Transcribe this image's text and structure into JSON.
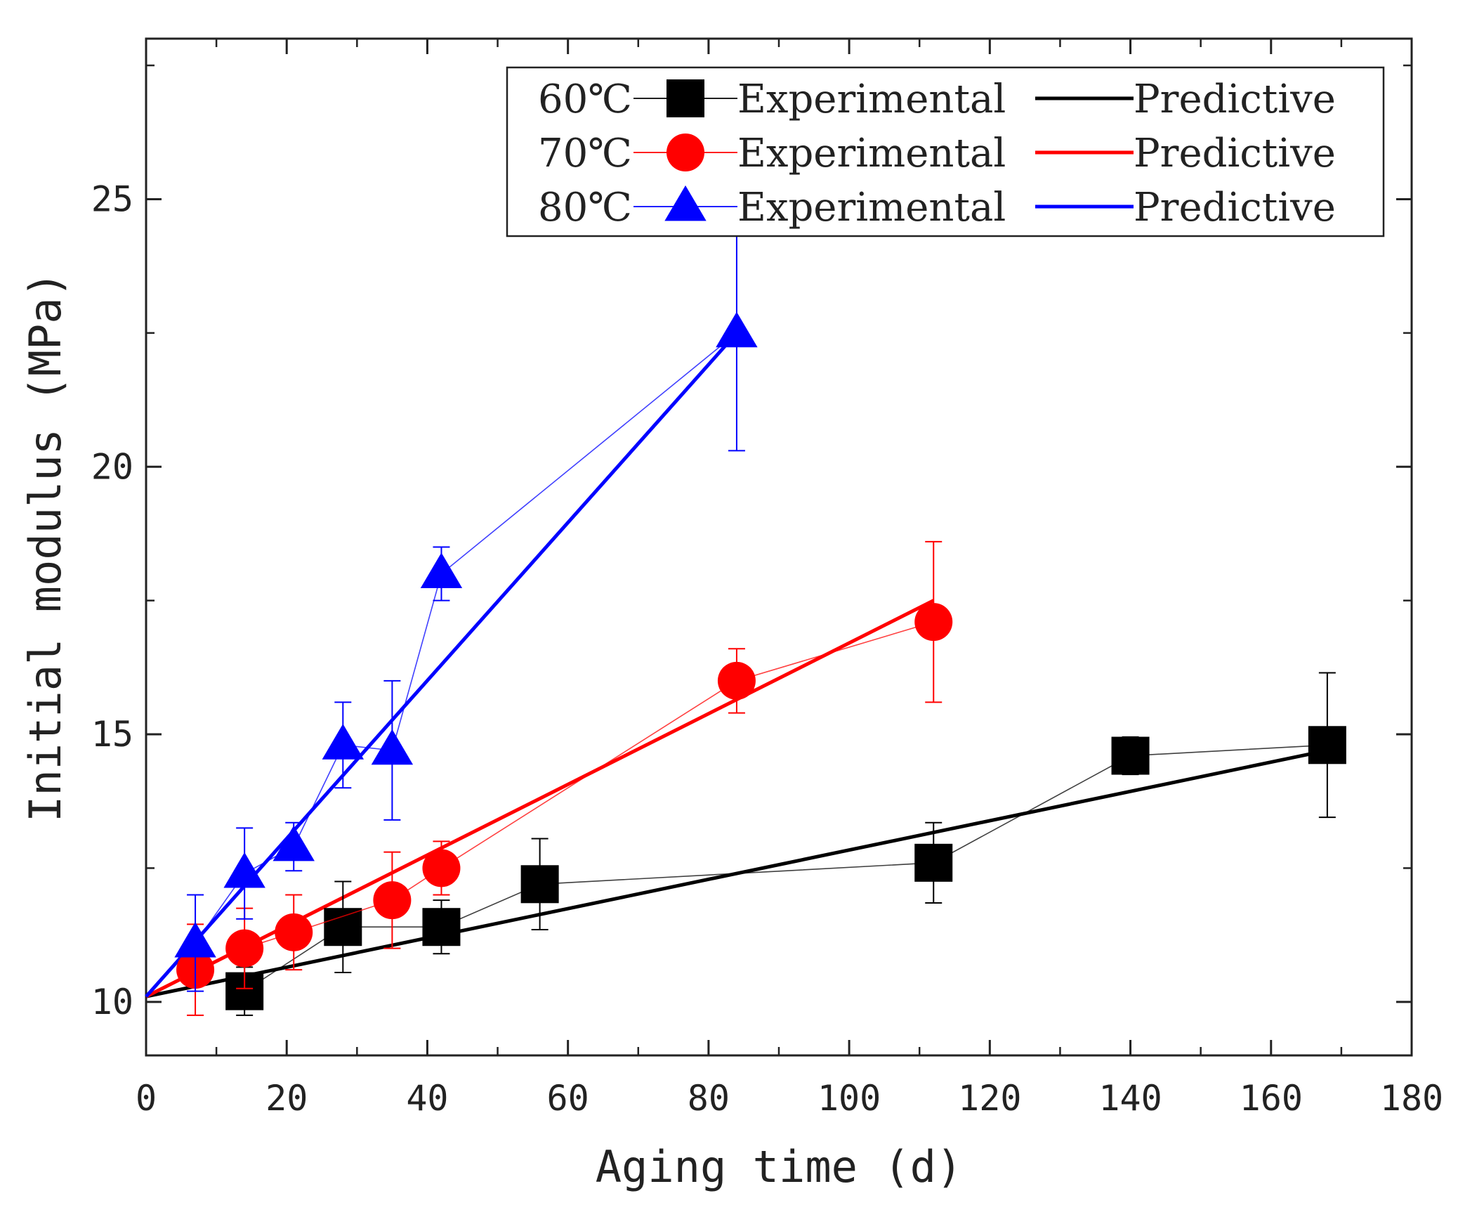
{
  "chart_data": {
    "type": "scatter",
    "xlabel": "Aging time (d)",
    "ylabel": "Initial modulus (MPa)",
    "xlim": [
      0,
      180
    ],
    "ylim": [
      9,
      28
    ],
    "xticks": [
      0,
      20,
      40,
      60,
      80,
      100,
      120,
      140,
      160,
      180
    ],
    "yticks": [
      10,
      15,
      20,
      25
    ],
    "grid": false,
    "legend_position": "top-right",
    "series": [
      {
        "name": "60℃",
        "experimental_label": "Experimental",
        "predictive_label": "Predictive",
        "color": "#000000",
        "marker": "square",
        "x": [
          14,
          28,
          42,
          56,
          112,
          140,
          168
        ],
        "y": [
          10.2,
          11.4,
          11.4,
          12.2,
          12.6,
          14.6,
          14.8
        ],
        "err": [
          0.45,
          0.85,
          0.5,
          0.85,
          0.75,
          0.35,
          1.35
        ],
        "predictive": {
          "x": [
            0,
            168
          ],
          "y": [
            10.1,
            14.7
          ]
        }
      },
      {
        "name": "70℃",
        "experimental_label": "Experimental",
        "predictive_label": "Predictive",
        "color": "#ff0000",
        "marker": "circle",
        "x": [
          7,
          14,
          21,
          35,
          42,
          84,
          112
        ],
        "y": [
          10.6,
          11.0,
          11.3,
          11.9,
          12.5,
          16.0,
          17.1
        ],
        "err": [
          0.85,
          0.75,
          0.7,
          0.9,
          0.5,
          0.6,
          1.5
        ],
        "predictive": {
          "x": [
            0,
            112
          ],
          "y": [
            10.1,
            17.5
          ]
        }
      },
      {
        "name": "80℃",
        "experimental_label": "Experimental",
        "predictive_label": "Predictive",
        "color": "#0000ff",
        "marker": "triangle",
        "x": [
          7,
          14,
          21,
          28,
          35,
          42,
          84
        ],
        "y": [
          11.1,
          12.4,
          12.9,
          14.8,
          14.7,
          18.0,
          22.5
        ],
        "err": [
          0.9,
          0.85,
          0.45,
          0.8,
          1.3,
          0.5,
          2.2
        ],
        "predictive": {
          "x": [
            0,
            84
          ],
          "y": [
            10.1,
            22.5
          ]
        }
      }
    ]
  }
}
